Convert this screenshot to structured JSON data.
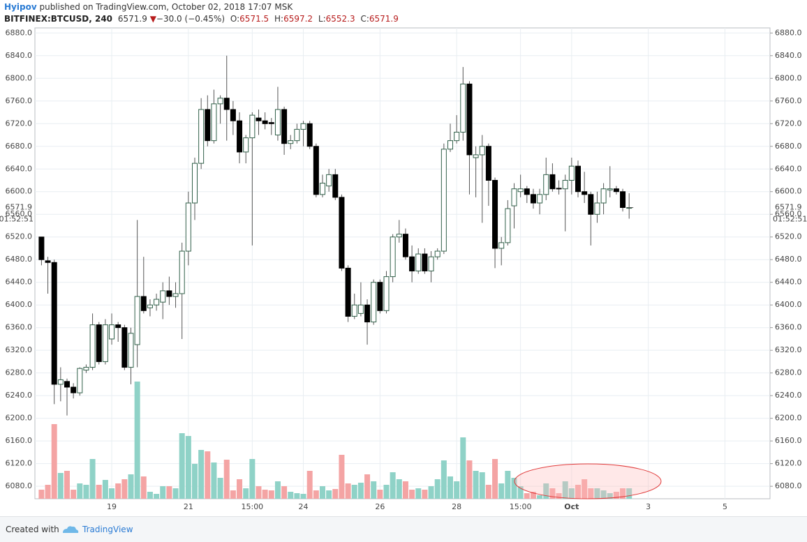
{
  "header": {
    "author": "Hyipov",
    "published": "published on TradingView.com, October 02, 2018 17:07 MSK",
    "symbol": "BITFINEX:BTCUSD, 240",
    "arrow": "▼",
    "change": "−30.0 (−0.45%)",
    "o": "O:",
    "h": "H:",
    "l": "L:",
    "c": "C:"
  },
  "footer": {
    "created": "Created with",
    "brand": "TradingView"
  },
  "chart_data": {
    "type": "candlestick",
    "countdown": "01:52:51",
    "up_color": "#ffffff",
    "up_border": "#2f5f48",
    "down_color": "#000000",
    "wick_color": "#555555",
    "volume_up_color": "#8fd2c7",
    "volume_down_color": "#f4a4a4",
    "grid": true,
    "ylim": [
      6058,
      6889
    ],
    "yticks": [
      {
        "value": 6080,
        "label": "6080.0"
      },
      {
        "value": 6120,
        "label": "6120.0"
      },
      {
        "value": 6160,
        "label": "6160.0"
      },
      {
        "value": 6200,
        "label": "6200.0"
      },
      {
        "value": 6240,
        "label": "6240.0"
      },
      {
        "value": 6280,
        "label": "6280.0"
      },
      {
        "value": 6320,
        "label": "6320.0"
      },
      {
        "value": 6360,
        "label": "6360.0"
      },
      {
        "value": 6400,
        "label": "6400.0"
      },
      {
        "value": 6440,
        "label": "6440.0"
      },
      {
        "value": 6480,
        "label": "6480.0"
      },
      {
        "value": 6520,
        "label": "6520.0"
      },
      {
        "value": 6560,
        "label": "6560.0"
      },
      {
        "value": 6600,
        "label": "6600.0"
      },
      {
        "value": 6640,
        "label": "6640.0"
      },
      {
        "value": 6680,
        "label": "6680.0"
      },
      {
        "value": 6720,
        "label": "6720.0"
      },
      {
        "value": 6760,
        "label": "6760.0"
      },
      {
        "value": 6800,
        "label": "6800.0"
      },
      {
        "value": 6840,
        "label": "6840.0"
      },
      {
        "value": 6880,
        "label": "6880.0"
      }
    ],
    "categories": [
      null,
      null,
      null,
      null,
      null,
      null,
      null,
      null,
      null,
      null,
      null,
      "19",
      null,
      null,
      null,
      null,
      null,
      null,
      null,
      null,
      null,
      null,
      null,
      "21",
      null,
      null,
      null,
      null,
      null,
      null,
      null,
      null,
      null,
      "15:00",
      null,
      null,
      null,
      null,
      null,
      null,
      null,
      "24",
      null,
      null,
      null,
      null,
      null,
      null,
      null,
      null,
      null,
      null,
      null,
      "26",
      null,
      null,
      null,
      null,
      null,
      null,
      null,
      null,
      null,
      null,
      null,
      "28",
      null,
      null,
      null,
      null,
      null,
      null,
      null,
      null,
      null,
      "15:00",
      null,
      null,
      null,
      null,
      null,
      null,
      null,
      "Oct",
      null,
      null,
      null,
      null,
      null,
      null,
      null,
      null,
      null,
      null,
      null,
      "3",
      null,
      null,
      null,
      null,
      null,
      null,
      null,
      null,
      null,
      null,
      null,
      "5"
    ],
    "open": [
      6520,
      6478,
      6475,
      6260,
      6265,
      6255,
      6245,
      6285,
      6290,
      6365,
      6300,
      6340,
      6365,
      6360,
      6290,
      6330,
      6415,
      6395,
      6400,
      6405,
      6425,
      6415,
      6420,
      6495,
      6580,
      6650,
      6745,
      6690,
      6755,
      6765,
      6745,
      6725,
      6670,
      6695,
      6730,
      6725,
      6722,
      6700,
      6745,
      6685,
      6690,
      6710,
      6720,
      6680,
      6595,
      6610,
      6630,
      6590,
      6465,
      6380,
      6385,
      6400,
      6370,
      6440,
      6390,
      6450,
      6520,
      6525,
      6485,
      6460,
      6490,
      6460,
      6485,
      6495,
      6675,
      6690,
      6705,
      6790,
      6660,
      6665,
      6680,
      6620,
      6500,
      6510,
      6575,
      6600,
      6605,
      6595,
      6580,
      6595,
      6630,
      6606,
      6605,
      6620,
      6645,
      6600,
      6595,
      6560,
      6580,
      6603,
      6605,
      6600,
      6571.5,
      null,
      null,
      null,
      null,
      null,
      null,
      null,
      null,
      null,
      null,
      null,
      null,
      null,
      null,
      null
    ],
    "high": [
      6520,
      6485,
      6480,
      6290,
      6270,
      6262,
      6290,
      6295,
      6385,
      6370,
      6375,
      6385,
      6370,
      6365,
      6360,
      6550,
      6485,
      6410,
      6420,
      6440,
      6450,
      6440,
      6510,
      6600,
      6660,
      6765,
      6770,
      6780,
      6770,
      6840,
      6760,
      6740,
      6700,
      6740,
      6745,
      6740,
      6730,
      6785,
      6750,
      6700,
      6720,
      6725,
      6725,
      6685,
      6630,
      6640,
      6640,
      6595,
      6470,
      6420,
      6440,
      6410,
      6445,
      6445,
      6460,
      6525,
      6550,
      6535,
      6505,
      6500,
      6500,
      6495,
      6500,
      6685,
      6720,
      6735,
      6820,
      6795,
      6680,
      6700,
      6685,
      6625,
      6520,
      6585,
      6615,
      6630,
      6610,
      6605,
      6605,
      6660,
      6650,
      6620,
      6630,
      6660,
      6655,
      6635,
      6600,
      6600,
      6615,
      6645,
      6610,
      6605,
      6597.2,
      null,
      null,
      null,
      null,
      null,
      null,
      null,
      null,
      null,
      null,
      null,
      null,
      null,
      null,
      null
    ],
    "low": [
      6470,
      6420,
      6225,
      6230,
      6205,
      6235,
      6240,
      6280,
      6285,
      6295,
      6295,
      6330,
      6335,
      6285,
      6260,
      6290,
      6385,
      6380,
      6390,
      6375,
      6400,
      6395,
      6340,
      6470,
      6550,
      6640,
      6680,
      6685,
      6720,
      6690,
      6700,
      6650,
      6650,
      6505,
      6700,
      6710,
      6700,
      6690,
      6665,
      6675,
      6685,
      6680,
      6675,
      6590,
      6590,
      6600,
      6585,
      6460,
      6370,
      6375,
      6380,
      6330,
      6365,
      6385,
      6385,
      6440,
      6510,
      6480,
      6440,
      6455,
      6455,
      6440,
      6480,
      6490,
      6670,
      6685,
      6690,
      6595,
      6590,
      6545,
      6575,
      6465,
      6470,
      6505,
      6535,
      6590,
      6580,
      6570,
      6560,
      6585,
      6600,
      6595,
      6530,
      6595,
      6590,
      6580,
      6505,
      6545,
      6560,
      6590,
      6595,
      6565,
      6552.3,
      null,
      null,
      null,
      null,
      null,
      null,
      null,
      null,
      null,
      null,
      null,
      null,
      null,
      null,
      null
    ],
    "close": [
      6480,
      6475,
      6260,
      6268,
      6255,
      6245,
      6288,
      6290,
      6365,
      6300,
      6365,
      6365,
      6360,
      6290,
      6350,
      6415,
      6390,
      6400,
      6410,
      6425,
      6415,
      6420,
      6495,
      6580,
      6650,
      6745,
      6690,
      6755,
      6765,
      6745,
      6725,
      6670,
      6695,
      6735,
      6725,
      6720,
      6720,
      6745,
      6685,
      6690,
      6710,
      6720,
      6680,
      6595,
      6615,
      6630,
      6590,
      6465,
      6380,
      6400,
      6400,
      6370,
      6440,
      6390,
      6450,
      6520,
      6525,
      6485,
      6460,
      6490,
      6460,
      6485,
      6495,
      6675,
      6690,
      6705,
      6790,
      6665,
      6665,
      6680,
      6620,
      6500,
      6510,
      6570,
      6605,
      6605,
      6595,
      6580,
      6595,
      6630,
      6605,
      6605,
      6620,
      6645,
      6600,
      6595,
      6560,
      6580,
      6605,
      6605,
      6600,
      6572,
      6571.9,
      null,
      null,
      null,
      null,
      null,
      null,
      null,
      null,
      null,
      null,
      null,
      null,
      null,
      null,
      null
    ],
    "volume": [
      13,
      20,
      107,
      37,
      40,
      13,
      22,
      20,
      57,
      20,
      27,
      15,
      22,
      28,
      35,
      168,
      32,
      10,
      7,
      18,
      18,
      15,
      94,
      90,
      50,
      70,
      68,
      52,
      30,
      56,
      12,
      28,
      15,
      57,
      18,
      13,
      12,
      25,
      18,
      10,
      8,
      7,
      40,
      12,
      18,
      12,
      14,
      63,
      22,
      20,
      23,
      35,
      25,
      13,
      20,
      38,
      28,
      25,
      13,
      15,
      13,
      18,
      28,
      55,
      32,
      25,
      88,
      55,
      40,
      38,
      20,
      57,
      22,
      40,
      30,
      18,
      8,
      10,
      5,
      22,
      15,
      8,
      25,
      15,
      20,
      28,
      15,
      15,
      12,
      8,
      10,
      15,
      15,
      null,
      null,
      null,
      null,
      null,
      null,
      null,
      null,
      null,
      null,
      null,
      null,
      null,
      null,
      null
    ]
  }
}
